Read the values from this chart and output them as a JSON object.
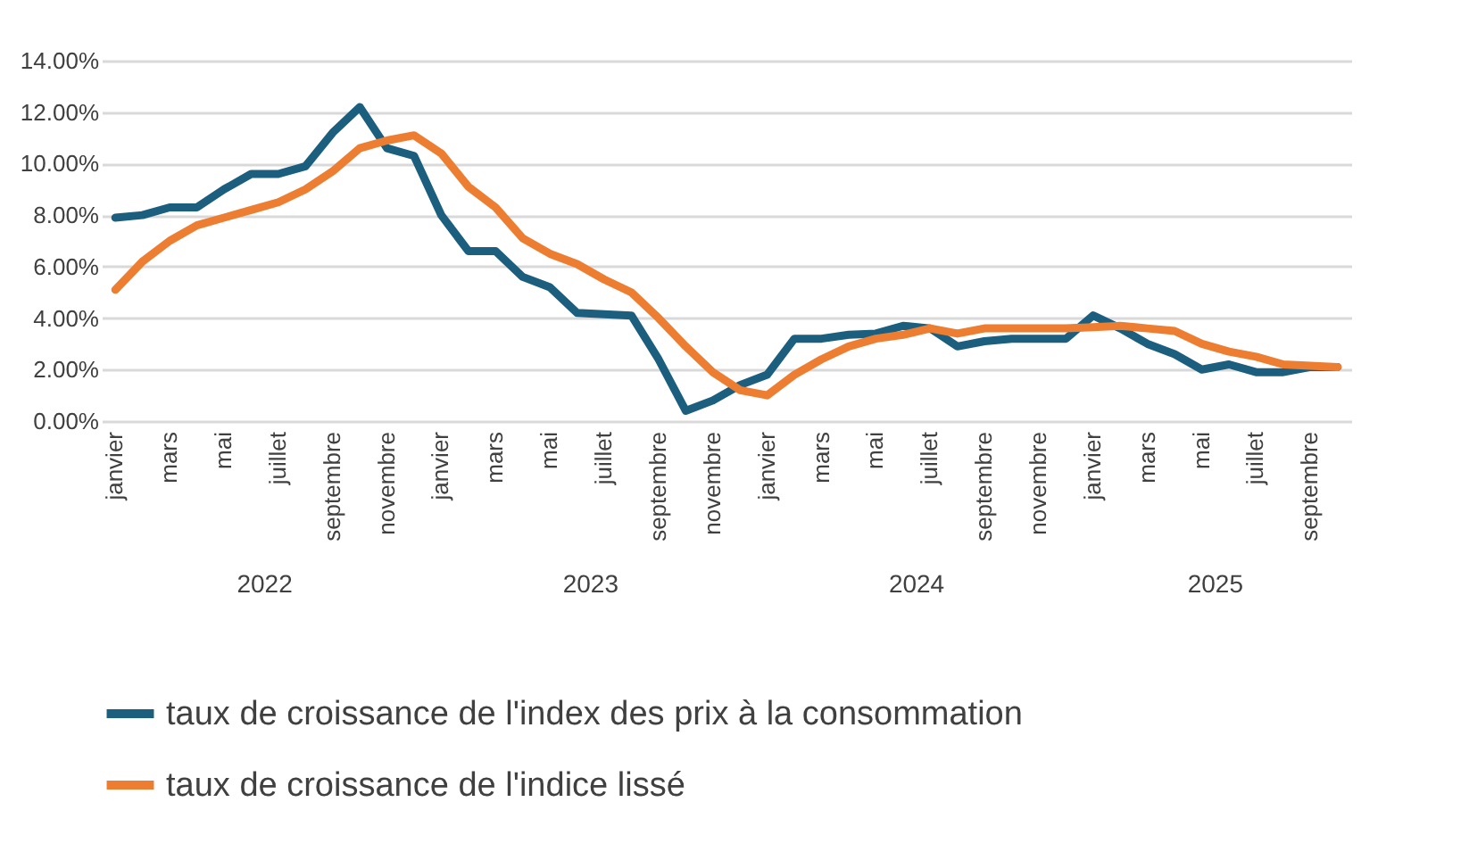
{
  "chart_data": {
    "type": "line",
    "categories": [
      "janvier",
      null,
      "mars",
      null,
      "mai",
      null,
      "juillet",
      null,
      "septembre",
      null,
      "novembre",
      null,
      "janvier",
      null,
      "mars",
      null,
      "mai",
      null,
      "juillet",
      null,
      "septembre",
      null,
      "novembre",
      null,
      "janvier",
      null,
      "mars",
      null,
      "mai",
      null,
      "juillet",
      null,
      "septembre",
      null,
      "novembre",
      null,
      "janvier",
      null,
      "mars",
      null,
      "mai",
      null,
      "juillet",
      null,
      "septembre",
      null
    ],
    "series": [
      {
        "name": "taux de croissance de l'index des prix à la consommation",
        "color": "#1b5e7e",
        "values": [
          7.9,
          8.0,
          8.3,
          8.3,
          9.0,
          9.6,
          9.6,
          9.9,
          11.2,
          12.2,
          10.6,
          10.3,
          8.0,
          6.6,
          6.6,
          5.6,
          5.2,
          4.2,
          4.15,
          4.1,
          2.4,
          0.4,
          0.8,
          1.4,
          1.8,
          3.2,
          3.2,
          3.35,
          3.4,
          3.7,
          3.6,
          2.9,
          3.1,
          3.2,
          3.2,
          3.2,
          4.1,
          3.6,
          3.0,
          2.6,
          2.0,
          2.2,
          1.9,
          1.9,
          2.1,
          2.1
        ]
      },
      {
        "name": "taux de croissance de l'indice lissé",
        "color": "#ed7d31",
        "values": [
          5.1,
          6.2,
          7.0,
          7.6,
          7.9,
          8.2,
          8.5,
          9.0,
          9.7,
          10.6,
          10.9,
          11.1,
          10.4,
          9.1,
          8.3,
          7.1,
          6.5,
          6.1,
          5.5,
          5.0,
          4.0,
          2.9,
          1.9,
          1.2,
          1.0,
          1.8,
          2.4,
          2.9,
          3.2,
          3.35,
          3.6,
          3.4,
          3.6,
          3.6,
          3.6,
          3.6,
          3.65,
          3.7,
          3.6,
          3.5,
          3.0,
          2.7,
          2.5,
          2.2,
          2.15,
          2.1
        ]
      }
    ],
    "ylim": [
      0,
      14
    ],
    "yticks": [
      {
        "value": 0,
        "label": "0.00%"
      },
      {
        "value": 2,
        "label": "2.00%"
      },
      {
        "value": 4,
        "label": "4.00%"
      },
      {
        "value": 6,
        "label": "6.00%"
      },
      {
        "value": 8,
        "label": "8.00%"
      },
      {
        "value": 10,
        "label": "10.00%"
      },
      {
        "value": 12,
        "label": "12.00%"
      },
      {
        "value": 14,
        "label": "14.00%"
      }
    ],
    "annotations": [
      "2022",
      "2023",
      "2024",
      "2025"
    ],
    "grid": "y",
    "legend": "bottom",
    "marker": "none",
    "line_style": "solid"
  }
}
